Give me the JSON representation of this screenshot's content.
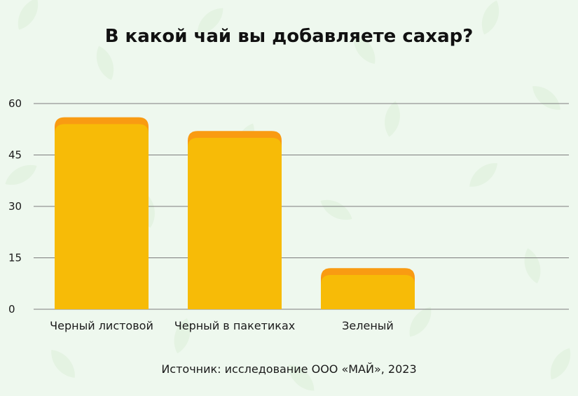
{
  "chart_data": {
    "type": "bar",
    "stacked": true,
    "title": "В какой чай вы добавляете сахар?",
    "source": "Источник: исследование ООО «МАЙ», 2023",
    "categories": [
      "Черный листовой",
      "Черный в пакетиках",
      "Зеленый"
    ],
    "series": [
      {
        "values": [
          54,
          50,
          10
        ],
        "color": "#f7bb07"
      },
      {
        "values": [
          2,
          2,
          2
        ],
        "color": "#f99b12"
      }
    ],
    "ylim": [
      0,
      60
    ],
    "yticks": [
      0,
      15,
      30,
      45,
      60
    ],
    "grid": true,
    "colors": {
      "background": "#eef8ee",
      "gridline": "#7d7d7d",
      "leaf": "#dcefd9"
    }
  }
}
